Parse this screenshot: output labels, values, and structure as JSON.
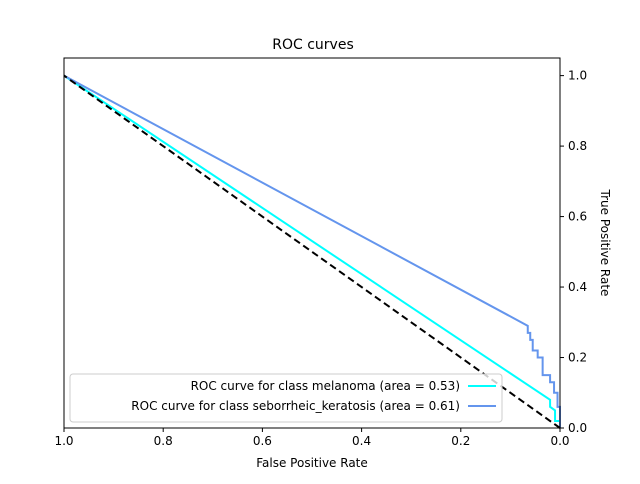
{
  "chart_data": {
    "type": "line",
    "title": "ROC curves",
    "xlabel": "False Positive Rate",
    "ylabel": "True Positive Rate",
    "xlim": [
      1.0,
      0.0
    ],
    "ylim": [
      0.0,
      1.05
    ],
    "x_axis_reversed": true,
    "y_axis_side": "right",
    "x_ticks": [
      1.0,
      0.8,
      0.6,
      0.4,
      0.2,
      0.0
    ],
    "x_tick_labels": [
      "1.0",
      "0.8",
      "0.6",
      "0.4",
      "0.2",
      "0.0"
    ],
    "y_ticks": [
      0.0,
      0.2,
      0.4,
      0.6,
      0.8,
      1.0
    ],
    "y_tick_labels": [
      "0.0",
      "0.2",
      "0.4",
      "0.6",
      "0.8",
      "1.0"
    ],
    "grid": false,
    "legend_position": "lower-right",
    "series": [
      {
        "name": "ROC curve for class melanoma (area = 0.53)",
        "color": "#00ffff",
        "x": [
          0.0,
          0.0,
          0.01,
          0.01,
          0.02,
          0.02,
          1.0
        ],
        "y": [
          0.0,
          0.02,
          0.02,
          0.05,
          0.06,
          0.08,
          1.0
        ]
      },
      {
        "name": "ROC curve for class seborrheic_keratosis (area = 0.61)",
        "color": "#6495ed",
        "x": [
          0.0,
          0.0,
          0.005,
          0.005,
          0.012,
          0.012,
          0.02,
          0.02,
          0.035,
          0.035,
          0.045,
          0.045,
          0.055,
          0.055,
          0.06,
          0.06,
          0.065,
          0.065,
          1.0
        ],
        "y": [
          0.0,
          0.06,
          0.06,
          0.1,
          0.1,
          0.13,
          0.13,
          0.15,
          0.15,
          0.2,
          0.2,
          0.22,
          0.22,
          0.25,
          0.25,
          0.27,
          0.27,
          0.29,
          1.0
        ]
      },
      {
        "name": "",
        "color": "#000000",
        "style": "dashed",
        "x": [
          0.0,
          1.0
        ],
        "y": [
          0.0,
          1.0
        ]
      }
    ]
  }
}
